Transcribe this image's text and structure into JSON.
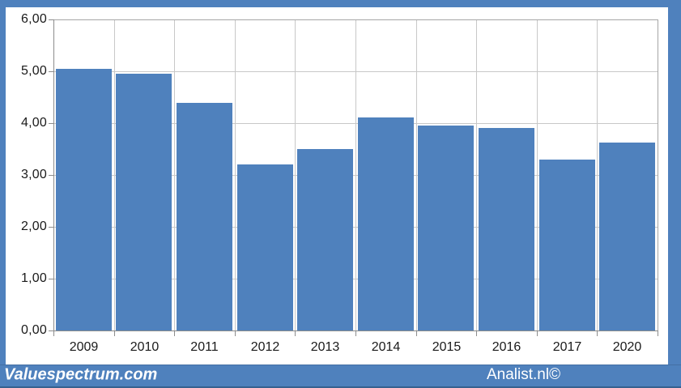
{
  "chart_data": {
    "type": "bar",
    "title": "",
    "categories": [
      "2009",
      "2010",
      "2011",
      "2012",
      "2013",
      "2014",
      "2015",
      "2016",
      "2017",
      "2020"
    ],
    "values": [
      5.04,
      4.95,
      4.39,
      3.2,
      3.5,
      4.11,
      3.95,
      3.91,
      3.3,
      3.63
    ],
    "xlabel": "",
    "ylabel": "",
    "ylim": [
      0,
      6
    ],
    "ytick_step": 1,
    "ytick_labels": [
      "0,00",
      "1,00",
      "2,00",
      "3,00",
      "4,00",
      "5,00",
      "6,00"
    ],
    "grid": true,
    "legend": false,
    "decimal_separator": ","
  },
  "footer": {
    "left_brand": "Valuespectrum.com",
    "right_brand": "Analist.nl©"
  },
  "colors": {
    "frame": "#4f81bd",
    "bar": "#4f81bd",
    "gridline": "#c8c8c8",
    "plot_border": "#a6a6a6",
    "axis": "#8c8c8c",
    "label_text": "#1a1a1a",
    "footer_text": "#ffffff"
  }
}
